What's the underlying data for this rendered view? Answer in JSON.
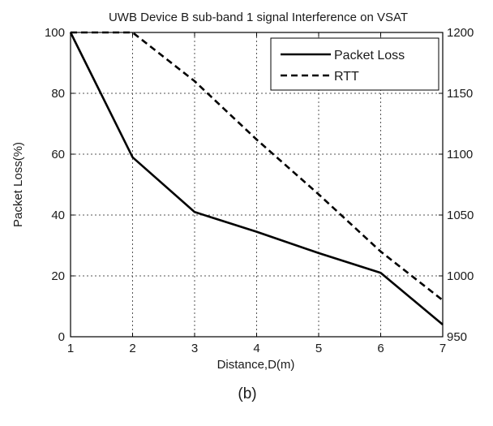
{
  "chart_data": {
    "type": "line",
    "title": "UWB Device B sub-band 1 signal Interference on VSAT",
    "xlabel": "Distance,D(m)",
    "ylabel": "Packet Loss(%)",
    "y2label": "",
    "x": [
      1,
      2,
      3,
      4,
      5,
      6,
      7
    ],
    "xlim": [
      1,
      7
    ],
    "ylim": [
      0,
      100
    ],
    "y2lim": [
      950,
      1200
    ],
    "x_ticks": [
      "1",
      "2",
      "3",
      "4",
      "5",
      "6",
      "7"
    ],
    "y_ticks": [
      "0",
      "20",
      "40",
      "60",
      "80",
      "100"
    ],
    "y2_ticks": [
      "950",
      "1000",
      "1050",
      "1100",
      "1150",
      "1200"
    ],
    "grid": true,
    "legend_position": "top-right",
    "series": [
      {
        "name": "Packet Loss",
        "axis": "left",
        "style": "solid",
        "values": [
          100,
          59,
          41,
          34.5,
          27.5,
          21,
          4
        ]
      },
      {
        "name": "RTT",
        "axis": "right",
        "style": "dashed",
        "values": [
          1200,
          1200,
          1160,
          1112,
          1067,
          1020,
          980
        ]
      }
    ],
    "caption": "(b)",
    "colors": {
      "line": "#000000",
      "grid": "#555555",
      "text": "#1a1a1a"
    }
  }
}
